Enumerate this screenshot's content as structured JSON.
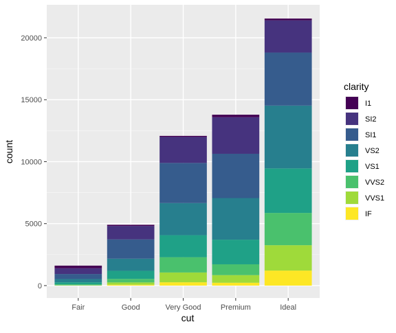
{
  "chart_data": {
    "type": "bar",
    "stacked": true,
    "categories": [
      "Fair",
      "Good",
      "Very Good",
      "Premium",
      "Ideal"
    ],
    "xlabel": "cut",
    "ylabel": "count",
    "ylim": [
      0,
      22000
    ],
    "yticks": [
      0,
      5000,
      10000,
      15000,
      20000
    ],
    "ytick_labels": [
      "0",
      "5000",
      "10000",
      "15000",
      "20000"
    ],
    "grid": true,
    "legend_title": "clarity",
    "legend_position": "right",
    "series": [
      {
        "name": "I1",
        "color": "#440154",
        "values": [
          210,
          96,
          84,
          205,
          146
        ]
      },
      {
        "name": "SI2",
        "color": "#46337E",
        "values": [
          466,
          1081,
          2100,
          2949,
          2598
        ]
      },
      {
        "name": "SI1",
        "color": "#365C8D",
        "values": [
          408,
          1560,
          3240,
          3575,
          4282
        ]
      },
      {
        "name": "VS2",
        "color": "#277F8E",
        "values": [
          261,
          978,
          2591,
          3357,
          5071
        ]
      },
      {
        "name": "VS1",
        "color": "#1FA187",
        "values": [
          170,
          648,
          1775,
          1989,
          3589
        ]
      },
      {
        "name": "VVS2",
        "color": "#4AC16D",
        "values": [
          69,
          286,
          1235,
          870,
          2606
        ]
      },
      {
        "name": "VVS1",
        "color": "#9FDA3A",
        "values": [
          17,
          186,
          789,
          616,
          2047
        ]
      },
      {
        "name": "IF",
        "color": "#FDE725",
        "values": [
          9,
          71,
          268,
          230,
          1212
        ]
      }
    ]
  }
}
